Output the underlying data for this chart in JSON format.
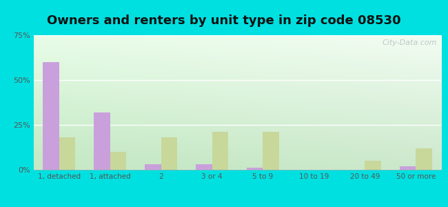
{
  "title": "Owners and renters by unit type in zip code 08530",
  "categories": [
    "1, detached",
    "1, attached",
    "2",
    "3 or 4",
    "5 to 9",
    "10 to 19",
    "20 to 49",
    "50 or more"
  ],
  "owner_values": [
    60,
    32,
    3,
    3,
    1,
    0,
    0,
    2
  ],
  "renter_values": [
    18,
    10,
    18,
    21,
    21,
    0,
    5,
    12
  ],
  "owner_color": "#c9a0dc",
  "renter_color": "#c8d89a",
  "outer_bg": "#00e0e0",
  "ylim": [
    0,
    75
  ],
  "yticks": [
    0,
    25,
    50,
    75
  ],
  "ytick_labels": [
    "0%",
    "25%",
    "50%",
    "75%"
  ],
  "title_fontsize": 13,
  "watermark": "City-Data.com",
  "bar_width": 0.32
}
